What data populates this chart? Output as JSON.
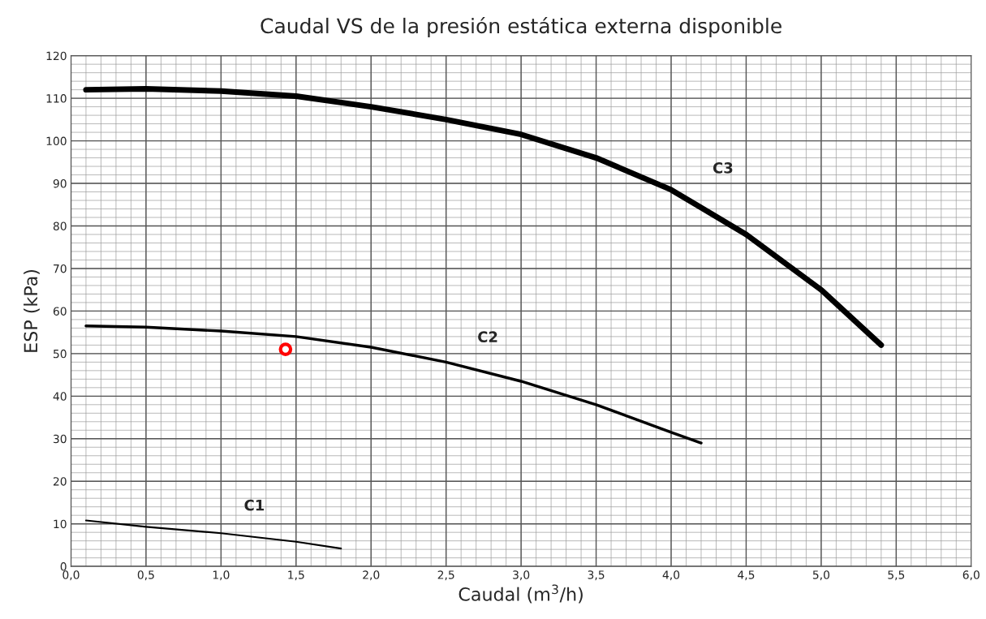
{
  "chart_data": {
    "type": "line",
    "title": "Caudal VS de la presión estática externa disponible",
    "xlabel": "Caudal (m$^{3}$/h)",
    "ylabel": "ESP (kPa)",
    "series": [
      {
        "name": "C1",
        "color": "#000000",
        "x": [
          0.1,
          0.5,
          1.0,
          1.5,
          1.8
        ],
        "values": [
          10.8,
          9.3,
          7.8,
          5.8,
          4.2
        ]
      },
      {
        "name": "C2",
        "color": "#000000",
        "x": [
          0.1,
          0.5,
          1.0,
          1.5,
          2.0,
          2.5,
          3.0,
          3.5,
          4.0,
          4.2
        ],
        "values": [
          56.5,
          56.2,
          55.3,
          54,
          51.5,
          48,
          43.5,
          38,
          31.5,
          29
        ]
      },
      {
        "name": "C3",
        "color": "#000000",
        "x": [
          0.1,
          0.5,
          1.0,
          1.5,
          2.0,
          2.5,
          3.0,
          3.5,
          4.0,
          4.5,
          5.0,
          5.4
        ],
        "values": [
          112,
          112.2,
          111.7,
          110.5,
          108,
          105,
          101.5,
          96,
          88.5,
          78,
          65,
          52
        ]
      },
      {
        "type": "scatter",
        "color": "#ff0000",
        "marker": "circle",
        "x": [
          1.43
        ],
        "values": [
          51
        ]
      }
    ],
    "xlim": [
      0,
      6
    ],
    "xticks": [
      {
        "value": 0,
        "label": "0,0"
      },
      {
        "value": 0.5,
        "label": "0,5"
      },
      {
        "value": 1,
        "label": "1,0"
      },
      {
        "value": 1.5,
        "label": "1,5"
      },
      {
        "value": 2,
        "label": "2,0"
      },
      {
        "value": 2.5,
        "label": "2,5"
      },
      {
        "value": 3,
        "label": "3,0"
      },
      {
        "value": 3.5,
        "label": "3,5"
      },
      {
        "value": 4,
        "label": "4,0"
      },
      {
        "value": 4.5,
        "label": "4,5"
      },
      {
        "value": 5,
        "label": "5,0"
      },
      {
        "value": 5.5,
        "label": "5,5"
      },
      {
        "value": 6,
        "label": "6,0"
      }
    ],
    "ylim": [
      0,
      120
    ],
    "yticks": [
      0,
      10,
      20,
      30,
      40,
      50,
      60,
      70,
      80,
      90,
      100,
      110,
      120
    ],
    "grid": true,
    "legend": false
  }
}
